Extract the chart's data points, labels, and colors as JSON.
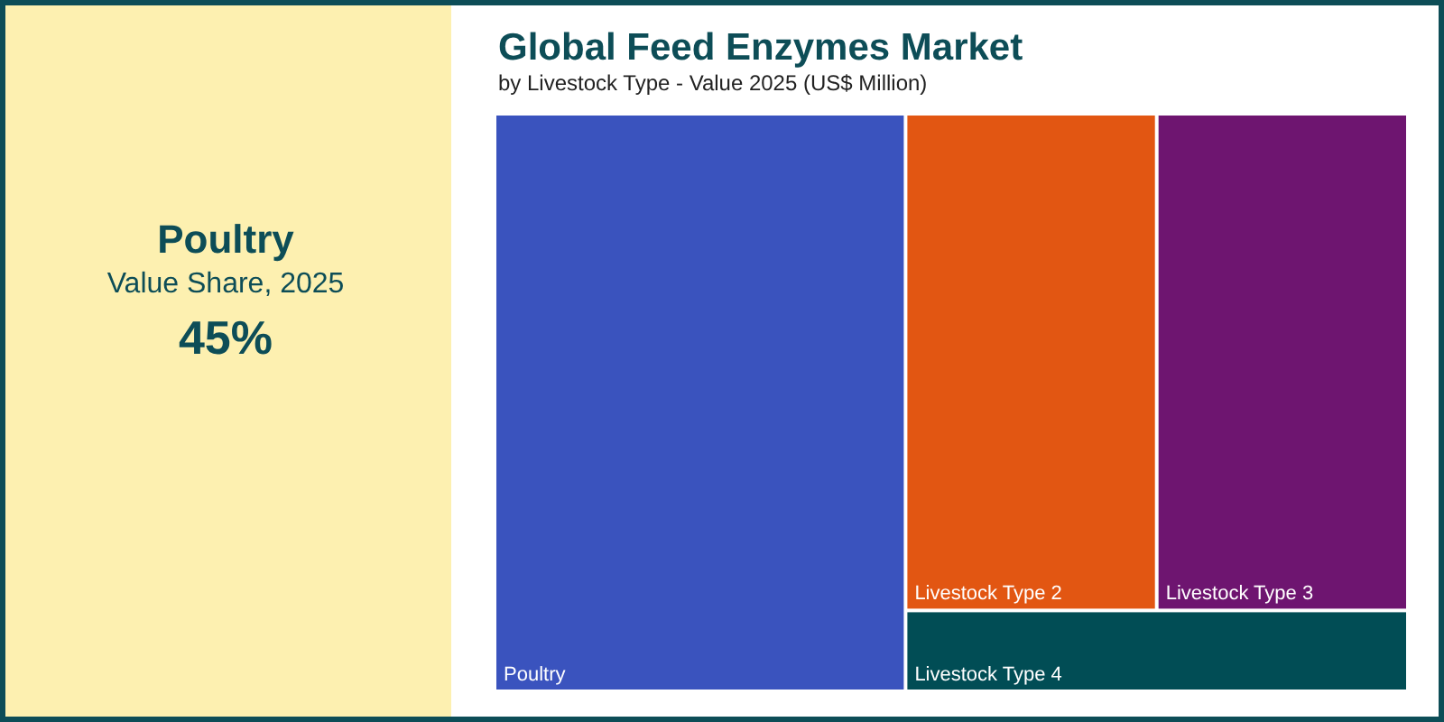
{
  "chart_data": {
    "type": "other",
    "title": "Global Feed Enzymes Market",
    "subtitle": "by Livestock Type - Value 2025 (US$ Million)",
    "categories": [
      "Poultry",
      "Livestock Type 2",
      "Livestock Type 3",
      "Livestock Type 4"
    ],
    "colors": [
      "#3a53be",
      "#e25612",
      "#6e1570",
      "#014d55"
    ],
    "values": [
      45,
      null,
      null,
      null
    ],
    "value_labels": [
      "45%",
      null,
      null,
      null
    ],
    "annotations": [
      "Value Share, 2025"
    ]
  }
}
